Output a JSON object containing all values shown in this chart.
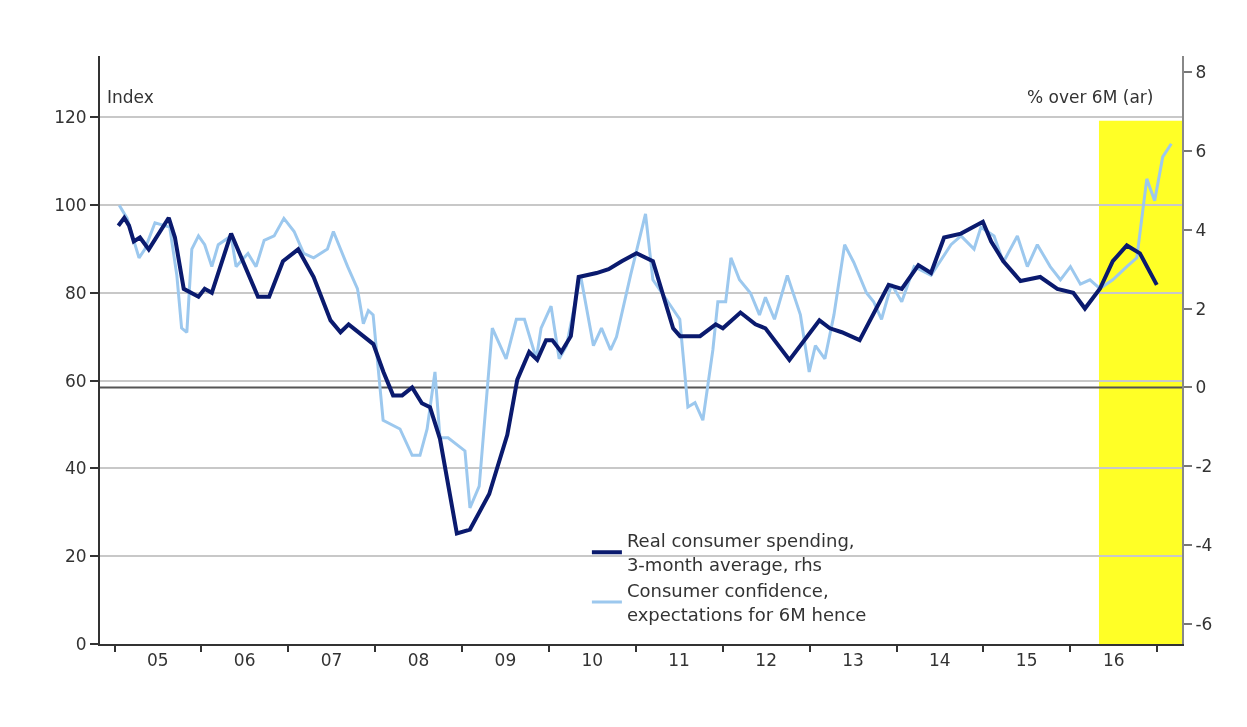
{
  "chart_data": {
    "type": "line",
    "ylabel": "Index",
    "y2label": "% over 6M (ar)",
    "xlim": [
      "2004-11-01",
      "2017-04-15"
    ],
    "xticks": [
      {
        "value": "2005-01-01",
        "label": null
      },
      {
        "value": "2005-07-02",
        "label": "05"
      },
      {
        "value": "2006-01-01",
        "label": null
      },
      {
        "value": "2006-07-02",
        "label": "06"
      },
      {
        "value": "2007-01-01",
        "label": null
      },
      {
        "value": "2007-07-02",
        "label": "07"
      },
      {
        "value": "2008-01-01",
        "label": null
      },
      {
        "value": "2008-07-02",
        "label": "08"
      },
      {
        "value": "2009-01-01",
        "label": null
      },
      {
        "value": "2009-07-02",
        "label": "09"
      },
      {
        "value": "2010-01-01",
        "label": null
      },
      {
        "value": "2010-07-02",
        "label": "10"
      },
      {
        "value": "2011-01-01",
        "label": null
      },
      {
        "value": "2011-07-02",
        "label": "11"
      },
      {
        "value": "2012-01-01",
        "label": null
      },
      {
        "value": "2012-07-02",
        "label": "12"
      },
      {
        "value": "2013-01-01",
        "label": null
      },
      {
        "value": "2013-07-02",
        "label": "13"
      },
      {
        "value": "2014-01-01",
        "label": null
      },
      {
        "value": "2014-07-02",
        "label": "14"
      },
      {
        "value": "2015-01-01",
        "label": null
      },
      {
        "value": "2015-07-02",
        "label": "15"
      },
      {
        "value": "2016-01-01",
        "label": null
      },
      {
        "value": "2016-07-02",
        "label": "16"
      },
      {
        "value": "2017-01-01",
        "label": null
      }
    ],
    "ylim": [
      0,
      134
    ],
    "yticks": [
      0,
      20,
      40,
      60,
      80,
      100,
      120
    ],
    "y2lim": [
      -6.5,
      8.4
    ],
    "y2ticks": [
      -6,
      -4,
      -2,
      0,
      2,
      4,
      6,
      8
    ],
    "grid": "y",
    "legend": "bottom",
    "marker": "none",
    "line_style": "solid",
    "ref_lines": [
      {
        "axis": "y2",
        "value": 0,
        "color": "#555555"
      }
    ],
    "bands": [
      {
        "axis": "x",
        "from": "2016-05-01",
        "to": "2017-04-15",
        "color": "#ffff00"
      }
    ],
    "series": [
      {
        "name": "Real consumer spending,\n3-month average, rhs",
        "color": "#0a1a6e",
        "axis": "y2",
        "x": [
          "2005-01-17",
          "2005-02-11",
          "2005-03-03",
          "2005-03-23",
          "2005-04-18",
          "2005-05-25",
          "2005-08-17",
          "2005-09-12",
          "2005-10-19",
          "2005-12-20",
          "2006-01-15",
          "2006-02-14",
          "2006-05-06",
          "2006-08-27",
          "2006-10-13",
          "2006-12-10",
          "2007-02-12",
          "2007-04-18",
          "2007-06-28",
          "2007-08-09",
          "2007-09-12",
          "2007-12-25",
          "2008-02-05",
          "2008-03-17",
          "2008-04-24",
          "2008-06-05",
          "2008-07-16",
          "2008-08-19",
          "2008-09-30",
          "2008-12-10",
          "2009-02-03",
          "2009-04-25",
          "2009-07-10",
          "2009-08-21",
          "2009-10-10",
          "2009-11-13",
          "2009-12-20",
          "2010-01-15",
          "2010-02-22",
          "2010-04-03",
          "2010-05-06",
          "2010-07-20",
          "2010-09-09",
          "2010-11-03",
          "2011-01-04",
          "2011-03-14",
          "2011-06-07",
          "2011-07-06",
          "2011-09-28",
          "2011-12-03",
          "2012-01-02",
          "2012-03-16",
          "2012-05-18",
          "2012-06-29",
          "2012-10-08",
          "2013-02-11",
          "2013-03-27",
          "2013-05-16",
          "2013-07-30",
          "2013-11-29",
          "2014-01-23",
          "2014-04-03",
          "2014-05-26",
          "2014-07-20",
          "2014-09-29",
          "2014-12-30",
          "2015-02-03",
          "2015-03-26",
          "2015-06-06",
          "2015-08-28",
          "2015-11-08",
          "2016-01-14",
          "2016-03-03",
          "2016-05-05",
          "2016-06-28",
          "2016-08-26",
          "2016-10-20",
          "2016-12-30"
        ],
        "values": [
          4.1,
          4.3,
          4.1,
          3.7,
          3.8,
          3.5,
          4.3,
          3.8,
          2.5,
          2.3,
          2.5,
          2.4,
          3.9,
          2.3,
          2.3,
          3.2,
          3.5,
          2.8,
          1.7,
          1.4,
          1.6,
          1.1,
          0.4,
          -0.2,
          -0.2,
          0.0,
          -0.4,
          -0.5,
          -1.3,
          -3.7,
          -3.6,
          -2.7,
          -1.2,
          0.2,
          0.9,
          0.7,
          1.2,
          1.2,
          0.9,
          1.3,
          2.8,
          2.9,
          3.0,
          3.2,
          3.4,
          3.2,
          1.5,
          1.3,
          1.3,
          1.6,
          1.5,
          1.9,
          1.6,
          1.5,
          0.7,
          1.7,
          1.5,
          1.4,
          1.2,
          2.6,
          2.5,
          3.1,
          2.9,
          3.8,
          3.9,
          4.2,
          3.7,
          3.2,
          2.7,
          2.8,
          2.5,
          2.4,
          2.0,
          2.5,
          3.2,
          3.6,
          3.4,
          2.6
        ]
      },
      {
        "name": "Consumer confidence,\nexpectations for 6M hence",
        "color": "#9cc8ee",
        "axis": "y",
        "x": [
          "2005-01-21",
          "2005-02-23",
          "2005-04-14",
          "2005-05-09",
          "2005-06-20",
          "2005-08-21",
          "2005-09-20",
          "2005-10-10",
          "2005-11-01",
          "2005-11-22",
          "2005-12-20",
          "2006-01-15",
          "2006-02-14",
          "2006-03-13",
          "2006-05-06",
          "2006-05-27",
          "2006-07-16",
          "2006-08-19",
          "2006-09-22",
          "2006-11-03",
          "2006-12-14",
          "2007-01-26",
          "2007-03-07",
          "2007-04-18",
          "2007-06-15",
          "2007-07-10",
          "2007-09-08",
          "2007-10-19",
          "2007-11-13",
          "2007-12-04",
          "2007-12-24",
          "2008-02-04",
          "2008-04-15",
          "2008-06-05",
          "2008-07-08",
          "2008-08-07",
          "2008-09-09",
          "2008-09-30",
          "2008-11-03",
          "2009-01-13",
          "2009-02-03",
          "2009-03-14",
          "2009-05-08",
          "2009-07-05",
          "2009-08-17",
          "2009-09-20",
          "2009-11-09",
          "2009-11-29",
          "2010-01-10",
          "2010-02-13",
          "2010-03-16",
          "2010-05-14",
          "2010-07-07",
          "2010-08-10",
          "2010-09-17",
          "2010-10-12",
          "2010-12-10",
          "2011-02-11",
          "2011-03-14",
          "2011-07-05",
          "2011-08-08",
          "2011-09-07",
          "2011-10-10",
          "2011-11-21",
          "2011-12-12",
          "2012-01-14",
          "2012-02-05",
          "2012-03-12",
          "2012-04-27",
          "2012-06-04",
          "2012-06-29",
          "2012-08-06",
          "2012-09-29",
          "2012-11-23",
          "2012-12-30",
          "2013-01-25",
          "2013-03-06",
          "2013-04-13",
          "2013-05-28",
          "2013-07-05",
          "2013-08-28",
          "2013-09-27",
          "2013-10-30",
          "2013-12-11",
          "2014-01-23",
          "2014-03-16",
          "2014-05-26",
          "2014-08-18",
          "2014-09-29",
          "2014-11-23",
          "2014-12-22",
          "2015-02-15",
          "2015-03-26",
          "2015-05-24",
          "2015-07-05",
          "2015-08-16",
          "2015-10-09",
          "2015-11-21",
          "2016-01-02",
          "2016-02-13",
          "2016-03-24",
          "2016-05-05",
          "2016-06-28",
          "2016-08-26",
          "2016-10-07",
          "2016-11-18",
          "2016-12-21",
          "2017-01-24",
          "2017-03-01"
        ],
        "values": [
          100,
          97,
          88,
          90,
          96,
          95,
          84,
          72,
          71,
          90,
          93,
          91,
          86,
          91,
          93,
          86,
          89,
          86,
          92,
          93,
          97,
          94,
          89,
          88,
          90,
          94,
          86,
          81,
          73,
          76,
          75,
          51,
          49,
          43,
          43,
          49,
          62,
          47,
          47,
          44,
          31,
          36,
          72,
          65,
          74,
          74,
          65,
          72,
          77,
          65,
          68,
          84,
          68,
          72,
          67,
          70,
          84,
          98,
          83,
          74,
          54,
          55,
          51,
          67,
          78,
          78,
          88,
          83,
          80,
          75,
          79,
          74,
          84,
          75,
          62,
          68,
          65,
          75,
          91,
          87,
          80,
          78,
          74,
          82,
          78,
          86,
          84,
          91,
          93,
          90,
          95,
          93,
          87,
          93,
          86,
          91,
          86,
          83,
          86,
          82,
          83,
          81,
          83,
          86,
          88,
          106,
          101,
          111,
          114
        ]
      }
    ]
  }
}
